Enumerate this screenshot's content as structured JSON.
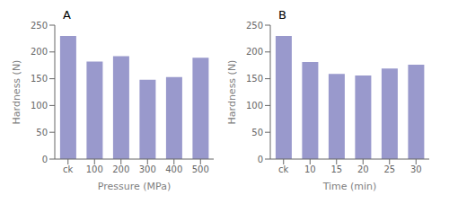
{
  "chart_data": [
    {
      "type": "bar",
      "categories": [
        "ck",
        "100",
        "200",
        "300",
        "400",
        "500"
      ],
      "values": [
        230,
        182,
        192,
        148,
        153,
        189
      ],
      "xlabel": "Pressure (MPa)",
      "ylabel": "Hardness (N)",
      "annotations": [
        "A"
      ],
      "ylim": [
        0,
        250
      ],
      "yticks": [
        0,
        50,
        100,
        150,
        200,
        250
      ],
      "color": "#9999cc"
    },
    {
      "type": "bar",
      "categories": [
        "ck",
        "10",
        "15",
        "20",
        "25",
        "30"
      ],
      "values": [
        230,
        181,
        159,
        156,
        169,
        176
      ],
      "xlabel": "Time (min)",
      "ylabel": "Hardness (N)",
      "annotations": [
        "B"
      ],
      "ylim": [
        0,
        250
      ],
      "yticks": [
        0,
        50,
        100,
        150,
        200,
        250
      ],
      "color": "#9999cc"
    }
  ]
}
